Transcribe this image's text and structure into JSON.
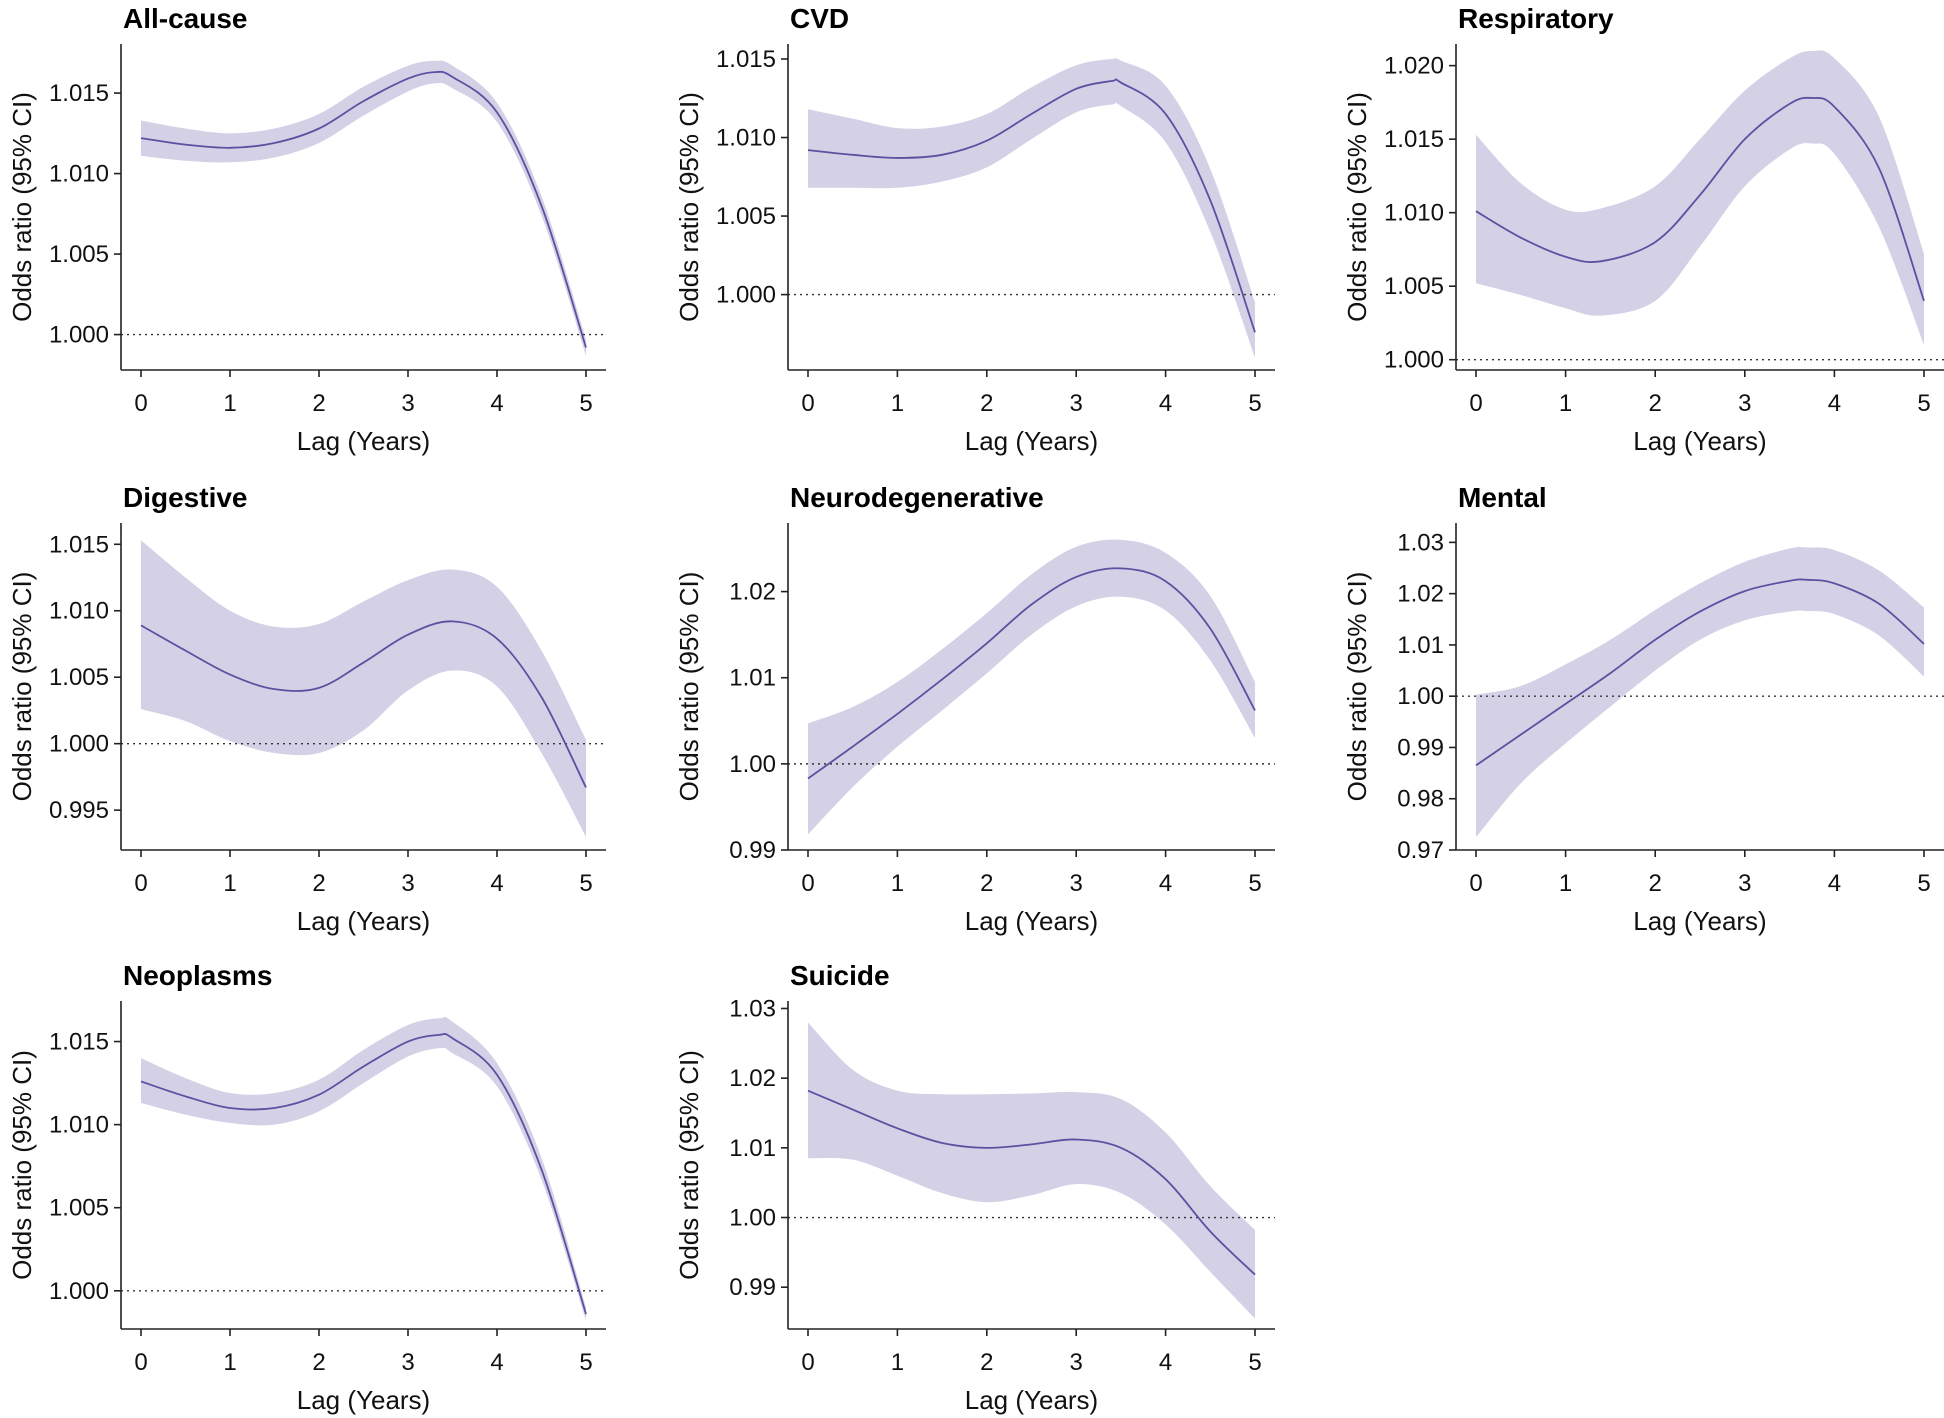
{
  "chart_data": [
    {
      "type": "line",
      "title": "All-cause",
      "xlabel": "Lag (Years)",
      "ylabel": "Odds ratio (95% CI)",
      "xlim": [
        0,
        5
      ],
      "ylim": [
        0.9978,
        1.0178
      ],
      "xticks": [
        0,
        1,
        2,
        3,
        4,
        5
      ],
      "yticks": [
        1.0,
        1.005,
        1.01,
        1.015
      ],
      "ytick_labels": [
        "1.000",
        "1.005",
        "1.010",
        "1.015"
      ],
      "reference_line": 1.0,
      "x": [
        0,
        0.5,
        1,
        1.5,
        2,
        2.5,
        3,
        3.3,
        3.5,
        4,
        4.5,
        5
      ],
      "estimate": [
        1.0122,
        1.0118,
        1.0116,
        1.0119,
        1.0128,
        1.0145,
        1.0159,
        1.0163,
        1.016,
        1.0138,
        1.008,
        0.9992
      ],
      "lower": [
        1.0111,
        1.0108,
        1.0107,
        1.011,
        1.0119,
        1.0136,
        1.0151,
        1.0156,
        1.0153,
        1.0132,
        1.0074,
        0.9987
      ],
      "upper": [
        1.0133,
        1.0128,
        1.0125,
        1.0128,
        1.0137,
        1.0154,
        1.0167,
        1.017,
        1.0167,
        1.0144,
        1.0086,
        0.9997
      ]
    },
    {
      "type": "line",
      "title": "CVD",
      "xlabel": "Lag (Years)",
      "ylabel": "Odds ratio (95% CI)",
      "xlim": [
        0,
        5
      ],
      "ylim": [
        0.9952,
        1.0157
      ],
      "xticks": [
        0,
        1,
        2,
        3,
        4,
        5
      ],
      "yticks": [
        1.0,
        1.005,
        1.01,
        1.015
      ],
      "ytick_labels": [
        "1.000",
        "1.005",
        "1.010",
        "1.015"
      ],
      "reference_line": 1.0,
      "x": [
        0,
        0.5,
        1,
        1.5,
        2,
        2.5,
        3,
        3.4,
        3.5,
        4,
        4.5,
        5
      ],
      "estimate": [
        1.0092,
        1.0089,
        1.0087,
        1.0089,
        1.0098,
        1.0115,
        1.0131,
        1.0136,
        1.0135,
        1.0115,
        1.006,
        0.9976
      ],
      "lower": [
        1.0068,
        1.0068,
        1.0068,
        1.0072,
        1.0081,
        1.0099,
        1.0116,
        1.0121,
        1.012,
        1.0097,
        1.004,
        0.996
      ],
      "upper": [
        1.0118,
        1.0112,
        1.0106,
        1.0107,
        1.0115,
        1.0132,
        1.0146,
        1.015,
        1.0149,
        1.0133,
        1.008,
        0.9995
      ]
    },
    {
      "type": "line",
      "title": "Respiratory",
      "xlabel": "Lag (Years)",
      "ylabel": "Odds ratio (95% CI)",
      "xlim": [
        0,
        5
      ],
      "ylim": [
        0.9993,
        1.0212
      ],
      "xticks": [
        0,
        1,
        2,
        3,
        4,
        5
      ],
      "yticks": [
        1.0,
        1.005,
        1.01,
        1.015,
        1.02
      ],
      "ytick_labels": [
        "1.000",
        "1.005",
        "1.010",
        "1.015",
        "1.020"
      ],
      "reference_line": 1.0,
      "x": [
        0,
        0.5,
        1,
        1.4,
        2,
        2.5,
        3,
        3.5,
        3.75,
        4,
        4.5,
        5
      ],
      "estimate": [
        1.0101,
        1.0083,
        1.007,
        1.0067,
        1.008,
        1.0112,
        1.015,
        1.0174,
        1.0178,
        1.0172,
        1.013,
        1.004
      ],
      "lower": [
        1.0052,
        1.0044,
        1.0035,
        1.003,
        1.004,
        1.0077,
        1.0118,
        1.0143,
        1.0147,
        1.014,
        1.009,
        1.001
      ],
      "upper": [
        1.0153,
        1.012,
        1.0102,
        1.0103,
        1.0118,
        1.015,
        1.0183,
        1.0205,
        1.021,
        1.0205,
        1.0165,
        1.0072
      ]
    },
    {
      "type": "line",
      "title": "Digestive",
      "xlabel": "Lag (Years)",
      "ylabel": "Odds ratio (95% CI)",
      "xlim": [
        0,
        5
      ],
      "ylim": [
        0.992,
        1.0163
      ],
      "xticks": [
        0,
        1,
        2,
        3,
        4,
        5
      ],
      "yticks": [
        0.995,
        1.0,
        1.005,
        1.01,
        1.015
      ],
      "ytick_labels": [
        "0.995",
        "1.000",
        "1.005",
        "1.010",
        "1.015"
      ],
      "reference_line": 1.0,
      "x": [
        0,
        0.5,
        1,
        1.5,
        2,
        2.5,
        3,
        3.5,
        4,
        4.5,
        5
      ],
      "estimate": [
        1.0089,
        1.007,
        1.0052,
        1.0041,
        1.0042,
        1.0061,
        1.0082,
        1.0092,
        1.0079,
        1.0035,
        0.9967
      ],
      "lower": [
        1.0026,
        1.0017,
        1.0002,
        0.9993,
        0.9993,
        1.001,
        1.004,
        1.0055,
        1.0043,
        0.9993,
        0.993
      ],
      "upper": [
        1.0153,
        1.0125,
        1.01,
        1.0088,
        1.009,
        1.0107,
        1.0123,
        1.0131,
        1.0118,
        1.007,
        1.0003
      ]
    },
    {
      "type": "line",
      "title": "Neurodegenerative",
      "xlabel": "Lag (Years)",
      "ylabel": "Odds ratio (95% CI)",
      "xlim": [
        0,
        5
      ],
      "ylim": [
        0.99,
        1.0275
      ],
      "xticks": [
        0,
        1,
        2,
        3,
        4,
        5
      ],
      "yticks": [
        0.99,
        1.0,
        1.01,
        1.02
      ],
      "ytick_labels": [
        "0.99",
        "1.00",
        "1.01",
        "1.02"
      ],
      "reference_line": 1.0,
      "x": [
        0,
        0.5,
        1,
        1.5,
        2,
        2.5,
        3,
        3.5,
        4,
        4.5,
        5
      ],
      "estimate": [
        0.9983,
        1.002,
        1.0058,
        1.0098,
        1.014,
        1.0185,
        1.0217,
        1.0227,
        1.0212,
        1.0157,
        1.0062
      ],
      "lower": [
        0.9918,
        0.9973,
        1.002,
        1.0062,
        1.0105,
        1.015,
        1.0183,
        1.0194,
        1.0178,
        1.012,
        1.003
      ],
      "upper": [
        1.0047,
        1.0066,
        1.0095,
        1.0133,
        1.0175,
        1.022,
        1.0252,
        1.026,
        1.0245,
        1.0195,
        1.0095
      ]
    },
    {
      "type": "line",
      "title": "Mental",
      "xlabel": "Lag (Years)",
      "ylabel": "Odds ratio (95% CI)",
      "xlim": [
        0,
        5
      ],
      "ylim": [
        0.97,
        1.033
      ],
      "xticks": [
        0,
        1,
        2,
        3,
        4,
        5
      ],
      "yticks": [
        0.97,
        0.98,
        0.99,
        1.0,
        1.01,
        1.02,
        1.03
      ],
      "ytick_labels": [
        "0.97",
        "0.98",
        "0.99",
        "1.00",
        "1.01",
        "1.02",
        "1.03"
      ],
      "reference_line": 1.0,
      "x": [
        0,
        0.5,
        1,
        1.5,
        2,
        2.5,
        3,
        3.5,
        3.7,
        4,
        4.5,
        5
      ],
      "estimate": [
        0.9865,
        0.9925,
        0.9985,
        1.0045,
        1.011,
        1.0165,
        1.0205,
        1.0225,
        1.0227,
        1.022,
        1.018,
        1.0102
      ],
      "lower": [
        0.9725,
        0.983,
        0.9908,
        0.998,
        1.005,
        1.011,
        1.0148,
        1.0165,
        1.0166,
        1.016,
        1.0118,
        1.0038
      ],
      "upper": [
        1.0003,
        1.002,
        1.0062,
        1.011,
        1.0168,
        1.022,
        1.0262,
        1.0288,
        1.029,
        1.0285,
        1.0245,
        1.0173
      ]
    },
    {
      "type": "line",
      "title": "Neoplasms",
      "xlabel": "Lag (Years)",
      "ylabel": "Odds ratio (95% CI)",
      "xlim": [
        0,
        5
      ],
      "ylim": [
        0.9977,
        1.0172
      ],
      "xticks": [
        0,
        1,
        2,
        3,
        4,
        5
      ],
      "yticks": [
        1.0,
        1.005,
        1.01,
        1.015
      ],
      "ytick_labels": [
        "1.000",
        "1.005",
        "1.010",
        "1.015"
      ],
      "reference_line": 1.0,
      "x": [
        0,
        0.5,
        1,
        1.5,
        2,
        2.5,
        3,
        3.35,
        3.5,
        4,
        4.5,
        5
      ],
      "estimate": [
        1.0126,
        1.0117,
        1.011,
        1.011,
        1.0118,
        1.0135,
        1.015,
        1.0154,
        1.0152,
        1.013,
        1.0073,
        0.9986
      ],
      "lower": [
        1.0113,
        1.0106,
        1.0101,
        1.01,
        1.0108,
        1.0125,
        1.0141,
        1.0146,
        1.0143,
        1.0123,
        1.0067,
        0.9982
      ],
      "upper": [
        1.014,
        1.0128,
        1.0119,
        1.0119,
        1.0127,
        1.0145,
        1.016,
        1.0164,
        1.0162,
        1.0137,
        1.008,
        0.999
      ]
    },
    {
      "type": "line",
      "title": "Suicide",
      "xlabel": "Lag (Years)",
      "ylabel": "Odds ratio (95% CI)",
      "xlim": [
        0,
        5
      ],
      "ylim": [
        0.984,
        1.0305
      ],
      "xticks": [
        0,
        1,
        2,
        3,
        4,
        5
      ],
      "yticks": [
        0.99,
        1.0,
        1.01,
        1.02,
        1.03
      ],
      "ytick_labels": [
        "0.99",
        "1.00",
        "1.01",
        "1.02",
        "1.03"
      ],
      "reference_line": 1.0,
      "x": [
        0,
        0.5,
        1,
        1.5,
        2,
        2.5,
        3,
        3.5,
        4,
        4.5,
        5
      ],
      "estimate": [
        1.0182,
        1.0155,
        1.0128,
        1.0107,
        1.01,
        1.0105,
        1.0112,
        1.01,
        1.0055,
        0.998,
        0.9918
      ],
      "lower": [
        1.0085,
        1.0083,
        1.006,
        1.0035,
        1.0022,
        1.0032,
        1.0048,
        1.0035,
        0.999,
        0.9922,
        0.9855
      ],
      "upper": [
        1.028,
        1.0212,
        1.0182,
        1.0177,
        1.0177,
        1.0178,
        1.018,
        1.017,
        1.0122,
        1.0045,
        0.9982
      ]
    }
  ]
}
